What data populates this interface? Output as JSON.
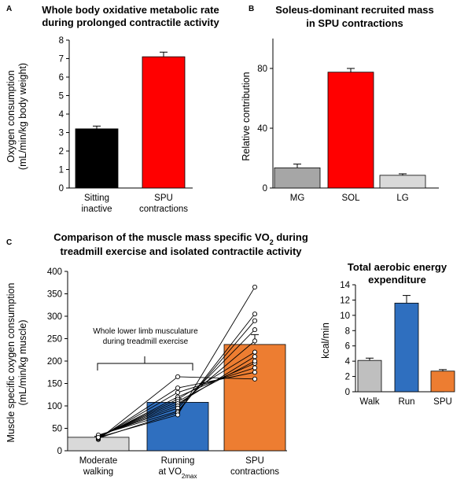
{
  "panels": {
    "a": "A",
    "b": "B",
    "c": "C"
  },
  "colors": {
    "black": "#000000",
    "red": "#ff0000",
    "gray": "#a6a6a6",
    "lightgray": "#d9d9d9",
    "blue": "#2f6fbf",
    "orange": "#ed7d31"
  },
  "chart_data": [
    {
      "id": "A",
      "type": "bar",
      "title_lines": [
        "Whole body oxidative metabolic rate",
        "during prolonged contractile activity"
      ],
      "ylabel_lines": [
        "Oxygen consumption",
        "(mL/min/kg body weight)"
      ],
      "categories": [
        [
          "Sitting",
          "inactive"
        ],
        [
          "SPU",
          "contractions"
        ]
      ],
      "values": [
        3.2,
        7.1
      ],
      "errors": [
        0.15,
        0.25
      ],
      "colors": [
        "#000000",
        "#ff0000"
      ],
      "ylim": [
        0,
        8
      ],
      "yticks": [
        0,
        1,
        2,
        3,
        4,
        5,
        6,
        7,
        8
      ]
    },
    {
      "id": "B",
      "type": "bar",
      "title_lines": [
        "Soleus-dominant recruited mass",
        "in SPU contractions"
      ],
      "ylabel_lines": [
        "Relative contribution"
      ],
      "categories": [
        [
          "MG"
        ],
        [
          "SOL"
        ],
        [
          "LG"
        ]
      ],
      "values": [
        13.5,
        77.5,
        8.5
      ],
      "errors": [
        2.5,
        2.5,
        1.0
      ],
      "colors": [
        "#a6a6a6",
        "#ff0000",
        "#d9d9d9"
      ],
      "ylim": [
        0,
        100
      ],
      "yticks": [
        0,
        40,
        80
      ]
    },
    {
      "id": "C1",
      "type": "bar",
      "title_lines": [
        "Comparison of the muscle mass specific VO",
        "treadmill exercise and isolated contractile activity"
      ],
      "title_sub": "2",
      "title_tail": " during",
      "ylabel_lines": [
        "Muscle specific oxygen consumption",
        "(mL/min/kg muscle)"
      ],
      "categories": [
        [
          "Moderate",
          "walking"
        ],
        [
          "Running",
          "at VO"
        ],
        [
          "SPU",
          "contractions"
        ]
      ],
      "category_sub": [
        "",
        "2max",
        ""
      ],
      "values": [
        30,
        108,
        237
      ],
      "errors": [
        2,
        8,
        22
      ],
      "colors": [
        "#d9d9d9",
        "#2f6fbf",
        "#ed7d31"
      ],
      "ylim": [
        0,
        400
      ],
      "yticks": [
        0,
        50,
        100,
        150,
        200,
        250,
        300,
        350,
        400
      ],
      "annotation_lines": [
        "Whole lower limb musculature",
        "during treadmill exercise"
      ],
      "individuals": [
        [
          25,
          165,
          160
        ],
        [
          27,
          140,
          175
        ],
        [
          28,
          130,
          185
        ],
        [
          29,
          120,
          195
        ],
        [
          30,
          115,
          220
        ],
        [
          31,
          110,
          200
        ],
        [
          32,
          105,
          210
        ],
        [
          33,
          100,
          245
        ],
        [
          34,
          95,
          270
        ],
        [
          35,
          88,
          290
        ],
        [
          28,
          85,
          305
        ],
        [
          30,
          80,
          365
        ]
      ]
    },
    {
      "id": "C2",
      "type": "bar",
      "title_lines": [
        "Total aerobic energy",
        "expenditure"
      ],
      "ylabel_lines": [
        "kcal/min"
      ],
      "categories": [
        [
          "Walk"
        ],
        [
          "Run"
        ],
        [
          "SPU"
        ]
      ],
      "values": [
        4.1,
        11.6,
        2.7
      ],
      "errors": [
        0.3,
        1.0,
        0.2
      ],
      "colors": [
        "#bfbfbf",
        "#2f6fbf",
        "#ed7d31"
      ],
      "ylim": [
        0,
        14
      ],
      "yticks": [
        0,
        2,
        4,
        6,
        8,
        10,
        12,
        14
      ]
    }
  ]
}
